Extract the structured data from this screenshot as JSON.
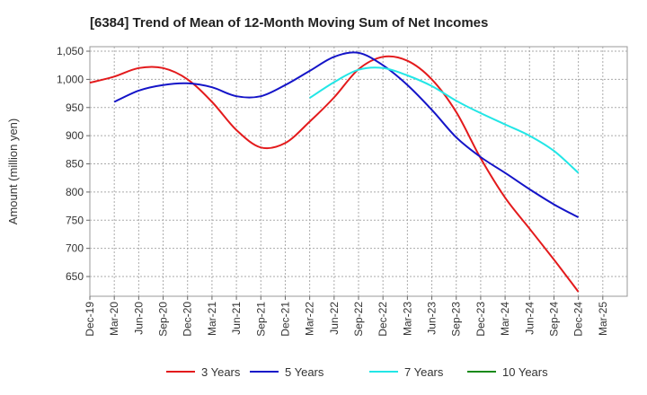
{
  "chart_data": {
    "type": "line",
    "title": "[6384]  Trend of Mean of 12-Month Moving Sum of Net Incomes",
    "ylabel": "Amount (million yen)",
    "xlabel": "",
    "ylim": [
      615,
      1058
    ],
    "yticks": [
      650,
      700,
      750,
      800,
      850,
      900,
      950,
      1000,
      1050
    ],
    "ytick_labels": [
      "650",
      "700",
      "750",
      "800",
      "850",
      "900",
      "950",
      "1,000",
      "1,050"
    ],
    "x_categories": [
      "Dec-19",
      "Mar-20",
      "Jun-20",
      "Sep-20",
      "Dec-20",
      "Mar-21",
      "Jun-21",
      "Sep-21",
      "Dec-21",
      "Mar-22",
      "Jun-22",
      "Sep-22",
      "Dec-22",
      "Mar-23",
      "Jun-23",
      "Sep-23",
      "Dec-23",
      "Mar-24",
      "Jun-24",
      "Sep-24",
      "Dec-24",
      "Mar-25"
    ],
    "grid": true,
    "legend_position": "bottom",
    "series": [
      {
        "name": "3 Years",
        "color": "#e31a1c",
        "values": [
          994,
          1005,
          1020,
          1020,
          1000,
          960,
          910,
          879,
          887,
          925,
          968,
          1018,
          1040,
          1033,
          1000,
          942,
          860,
          790,
          735,
          680,
          623,
          null
        ]
      },
      {
        "name": "5 Years",
        "color": "#1414c8",
        "values": [
          null,
          960,
          980,
          990,
          993,
          986,
          970,
          970,
          990,
          1015,
          1040,
          1047,
          1025,
          990,
          946,
          897,
          862,
          834,
          805,
          778,
          755,
          null
        ]
      },
      {
        "name": "7 Years",
        "color": "#22e6e6",
        "values": [
          null,
          null,
          null,
          null,
          null,
          null,
          null,
          null,
          null,
          967,
          995,
          1017,
          1020,
          1007,
          988,
          962,
          940,
          920,
          900,
          873,
          834,
          null
        ]
      },
      {
        "name": "10 Years",
        "color": "#1a8a1a",
        "values": [
          null,
          null,
          null,
          null,
          null,
          null,
          null,
          null,
          null,
          null,
          null,
          null,
          null,
          null,
          null,
          null,
          null,
          null,
          null,
          null,
          null,
          null
        ]
      }
    ]
  }
}
